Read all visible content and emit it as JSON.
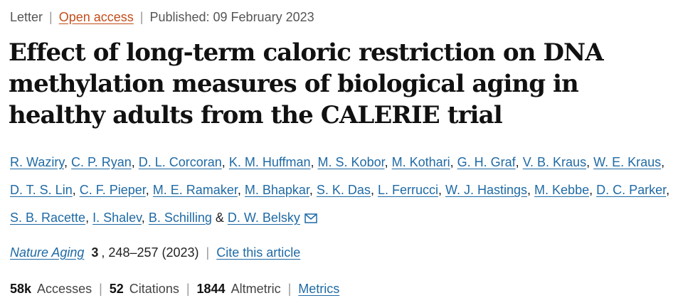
{
  "meta": {
    "article_type": "Letter",
    "open_access": "Open access",
    "published": "Published: 09 February 2023"
  },
  "title": "Effect of long-term caloric restriction on DNA methylation measures of biological aging in healthy adults from the CALERIE trial",
  "authors": [
    "R. Waziry",
    "C. P. Ryan",
    "D. L. Corcoran",
    "K. M. Huffman",
    "M. S. Kobor",
    "M. Kothari",
    "G. H. Graf",
    "V. B. Kraus",
    "W. E. Kraus",
    "D. T. S. Lin",
    "C. F. Pieper",
    "M. E. Ramaker",
    "M. Bhapkar",
    "S. K. Das",
    "L. Ferrucci",
    "W. J. Hastings",
    "M. Kebbe",
    "D. C. Parker",
    "S. B. Racette",
    "I. Shalev",
    "B. Schilling",
    "D. W. Belsky"
  ],
  "authors_conjunction": "&",
  "journal": {
    "name": "Nature Aging",
    "volume": "3",
    "pages_year": ", 248–257 (2023)",
    "cite_label": "Cite this article"
  },
  "metrics": {
    "accesses_value": "58k",
    "accesses_label": "Accesses",
    "citations_value": "52",
    "citations_label": "Citations",
    "altmetric_value": "1844",
    "altmetric_label": "Altmetric",
    "metrics_link": "Metrics"
  },
  "icons": {
    "corresponding_author": "mail-icon"
  },
  "colors": {
    "link": "#1f6aa5",
    "open_access": "#c44d1a"
  }
}
